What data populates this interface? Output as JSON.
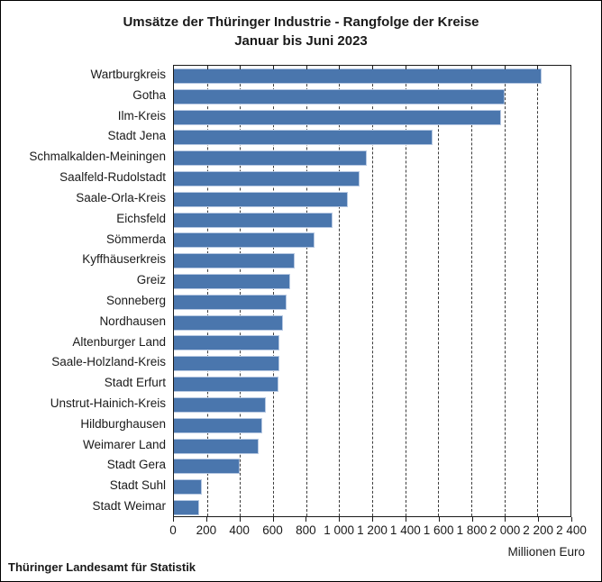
{
  "title": {
    "line1": "Umsätze der Thüringer Industrie - Rangfolge der Kreise",
    "line2": "Januar bis Juni 2023"
  },
  "footer": "Thüringer Landesamt für Statistik",
  "axis": {
    "max": 2400,
    "tick_values": [
      0,
      200,
      400,
      600,
      800,
      1000,
      1200,
      1400,
      1600,
      1800,
      2000,
      2200,
      2400
    ],
    "tick_labels": [
      "0",
      "200",
      "400",
      "600",
      "800",
      "1 000",
      "1 200",
      "1 400",
      "1 600",
      "1 800",
      "2 000",
      "2 200",
      "2 400"
    ],
    "unit_label": "Millionen Euro"
  },
  "colors": {
    "bar_fill": "#4a76ad",
    "bar_border": "#b6c8e2",
    "grid": "#3c3c3c",
    "text": "#1a1a1a"
  },
  "chart_data": {
    "type": "bar",
    "orientation": "horizontal",
    "title": "Umsätze der Thüringer Industrie - Rangfolge der Kreise",
    "subtitle": "Januar bis Juni 2023",
    "xlabel": "Millionen Euro",
    "xlim": [
      0,
      2400
    ],
    "grid": "dashed-vertical",
    "legend": "none",
    "source": "Thüringer Landesamt für Statistik",
    "categories": [
      "Wartburgkreis",
      "Gotha",
      "Ilm-Kreis",
      "Stadt Jena",
      "Schmalkalden-Meiningen",
      "Saalfeld-Rudolstadt",
      "Saale-Orla-Kreis",
      "Eichsfeld",
      "Sömmerda",
      "Kyffhäuserkreis",
      "Greiz",
      "Sonneberg",
      "Nordhausen",
      "Altenburger Land",
      "Saale-Holzland-Kreis",
      "Stadt Erfurt",
      "Unstrut-Hainich-Kreis",
      "Hildburghausen",
      "Weimarer Land",
      "Stadt Gera",
      "Stadt Suhl",
      "Stadt Weimar"
    ],
    "values": [
      2228,
      2000,
      1982,
      1564,
      1165,
      1125,
      1054,
      959,
      853,
      729,
      703,
      684,
      660,
      638,
      636,
      632,
      556,
      536,
      515,
      398,
      169,
      155
    ]
  }
}
